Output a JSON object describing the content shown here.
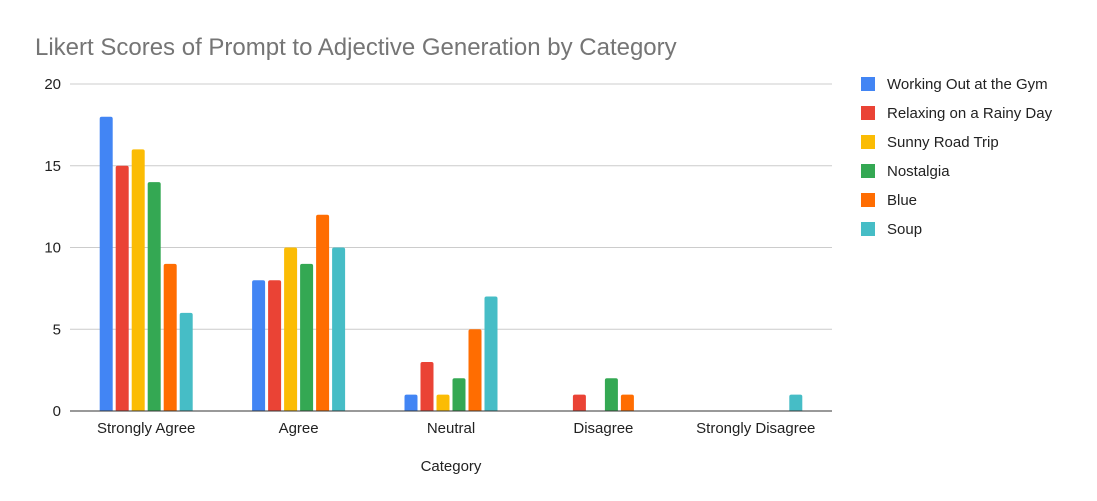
{
  "chart_data": {
    "type": "bar",
    "title": "Likert Scores of Prompt to Adjective Generation by Category",
    "xlabel": "Category",
    "ylabel": "",
    "categories": [
      "Strongly Agree",
      "Agree",
      "Neutral",
      "Disagree",
      "Strongly Disagree"
    ],
    "ylim": [
      0,
      20
    ],
    "yticks": [
      0,
      5,
      10,
      15,
      20
    ],
    "grid": true,
    "legend_position": "right",
    "series": [
      {
        "name": "Working Out at the Gym",
        "color": "#4285f4",
        "values": [
          18,
          8,
          1,
          0,
          0
        ]
      },
      {
        "name": "Relaxing on a Rainy Day",
        "color": "#ea4335",
        "values": [
          15,
          8,
          3,
          1,
          0
        ]
      },
      {
        "name": "Sunny Road Trip",
        "color": "#fbbc04",
        "values": [
          16,
          10,
          1,
          0,
          0
        ]
      },
      {
        "name": "Nostalgia",
        "color": "#34a853",
        "values": [
          14,
          9,
          2,
          2,
          0
        ]
      },
      {
        "name": "Blue",
        "color": "#ff6d01",
        "values": [
          9,
          12,
          5,
          1,
          0
        ]
      },
      {
        "name": "Soup",
        "color": "#46bdc6",
        "values": [
          6,
          10,
          7,
          0,
          1
        ]
      }
    ]
  }
}
